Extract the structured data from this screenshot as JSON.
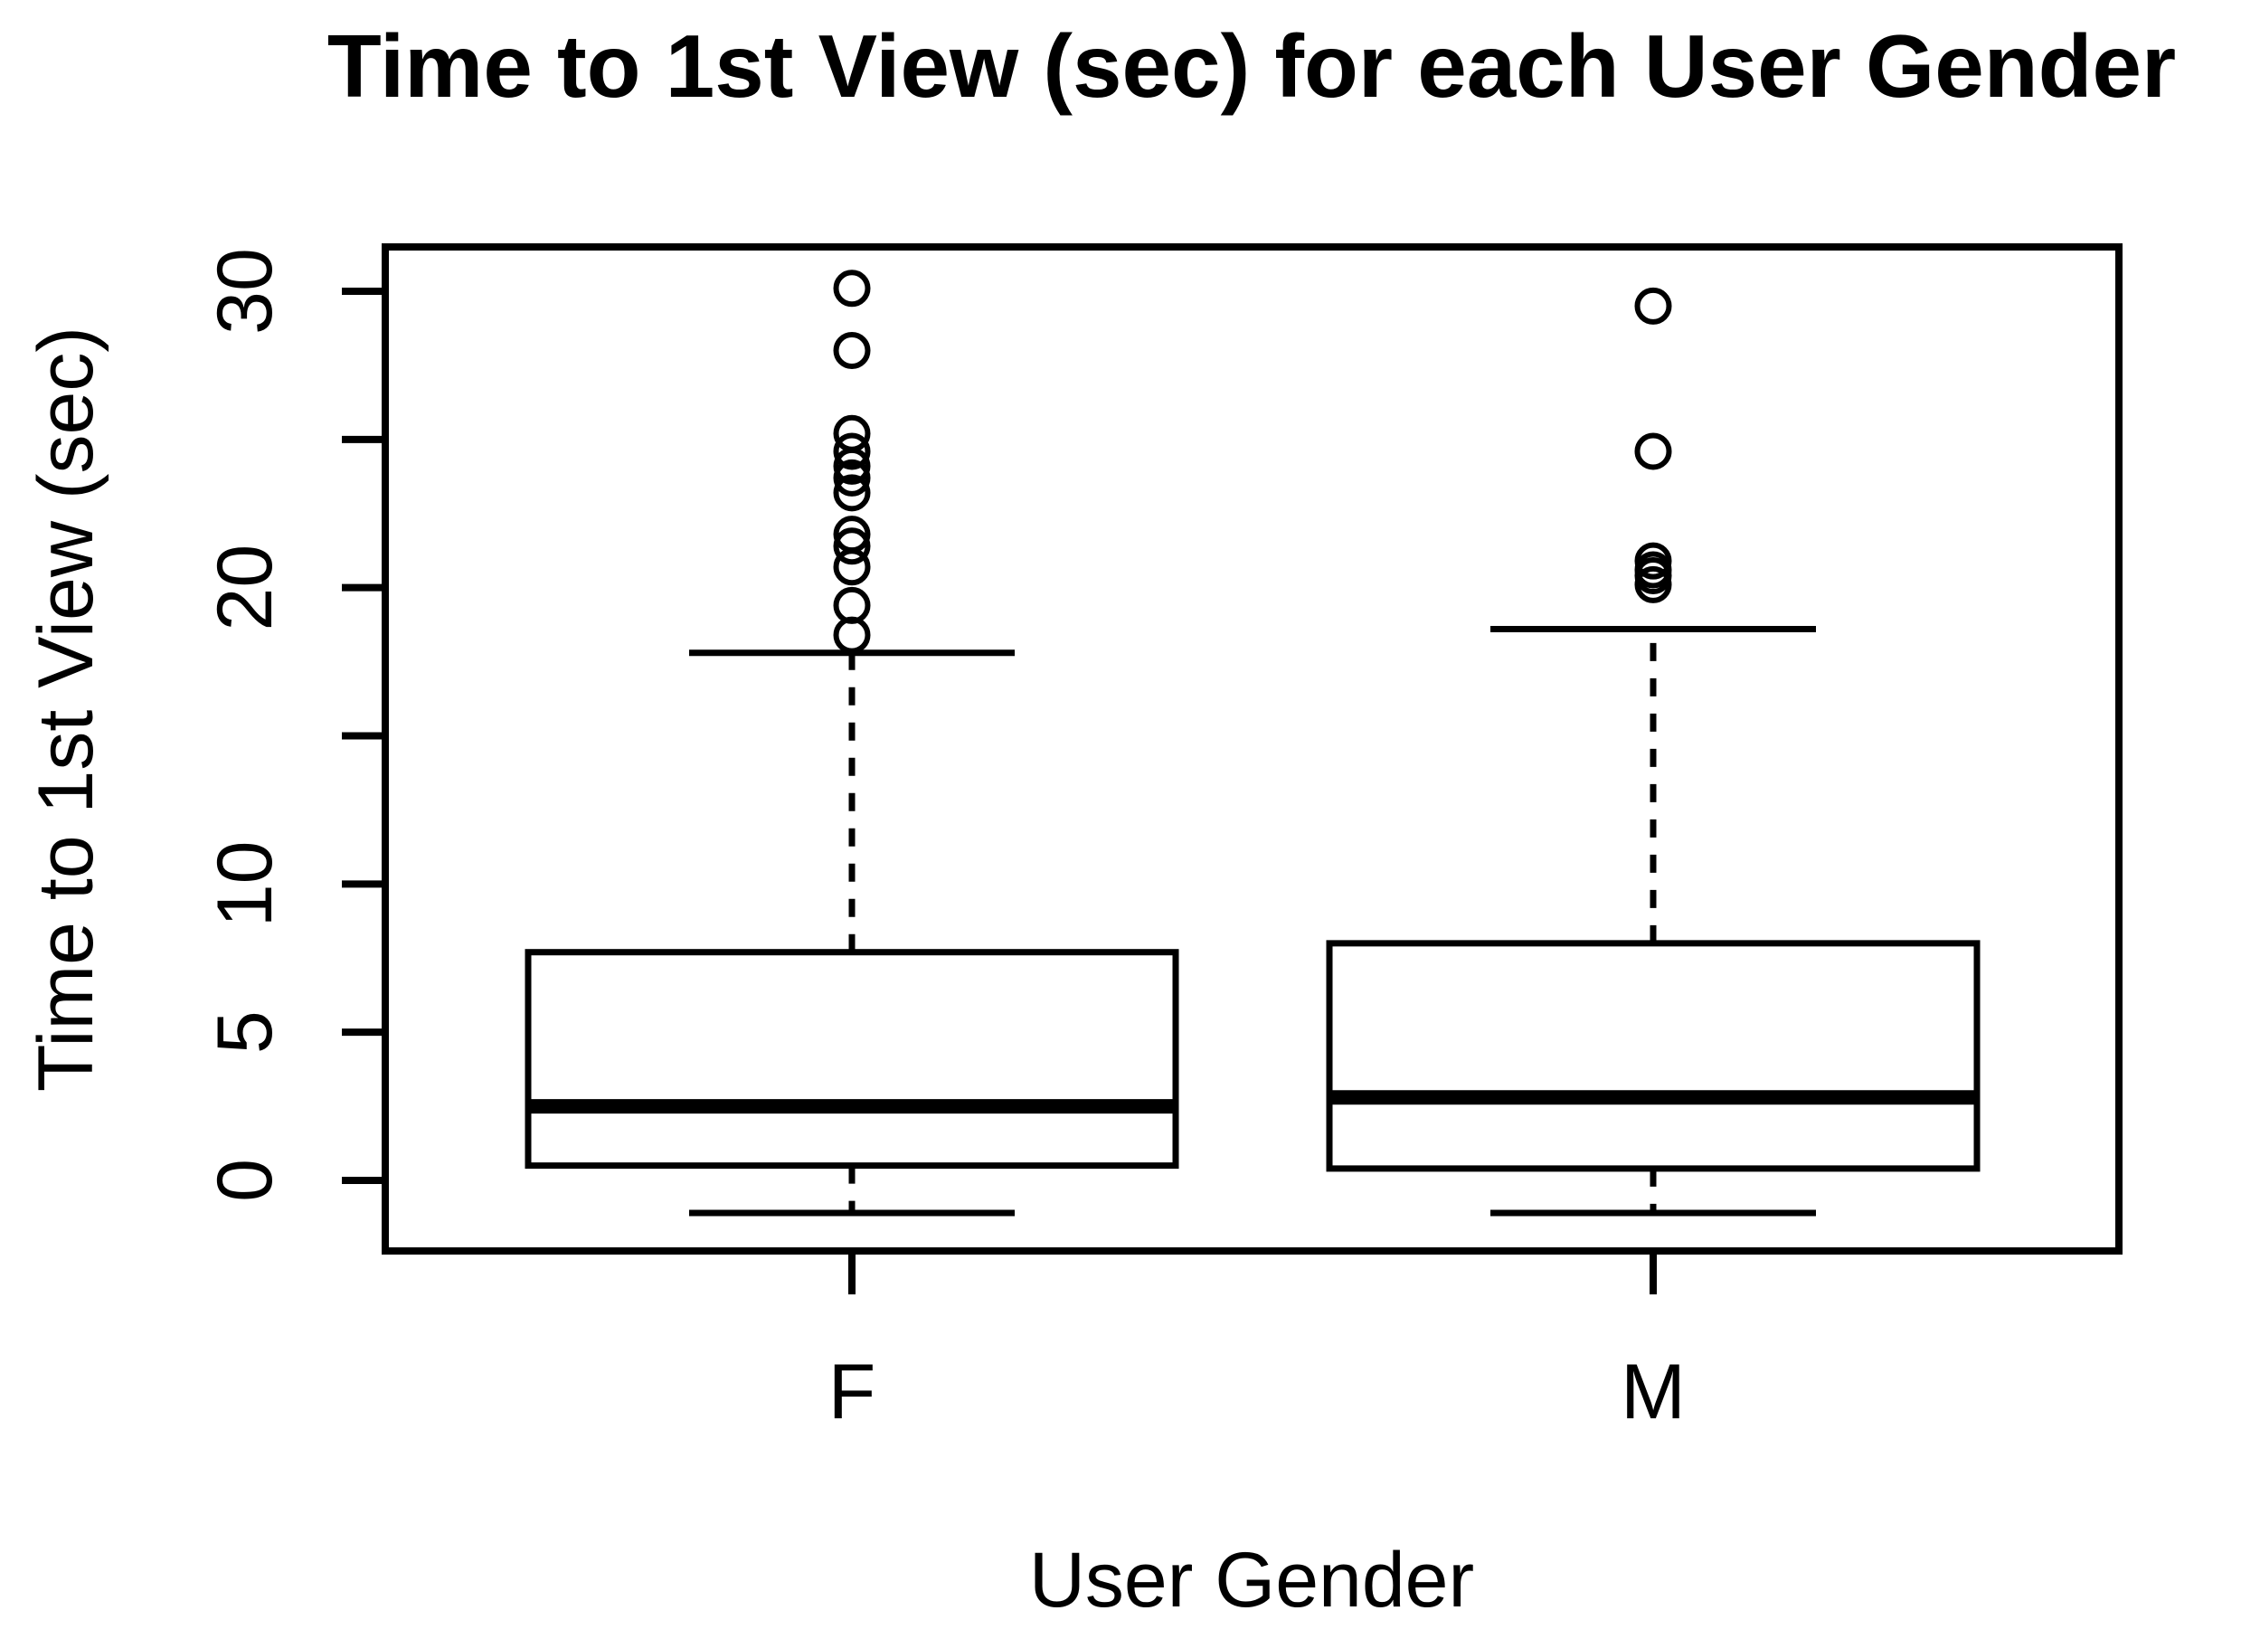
{
  "figure": {
    "background": "#ffffff",
    "foreground": "#000000"
  },
  "chart_data": {
    "type": "boxplot",
    "title": "Time to 1st View (sec) for each User Gender",
    "xlabel": "User Gender",
    "ylabel": "Time to 1st View (sec)",
    "categories": [
      "F",
      "M"
    ],
    "y_axis": {
      "ticks": [
        0,
        5,
        10,
        15,
        20,
        25,
        30
      ],
      "tick_labels": [
        "0",
        "5",
        "10",
        "",
        "20",
        "",
        "30"
      ],
      "drawn_range": [
        -2.4,
        31.5
      ],
      "grid": false
    },
    "series": [
      {
        "name": "F",
        "whisker_low": -1.1,
        "q1": 0.5,
        "median": 2.5,
        "q3": 7.7,
        "whisker_high": 17.8,
        "outliers": [
          18.4,
          19.4,
          20.7,
          21.4,
          21.8,
          23.2,
          23.7,
          24.1,
          24.6,
          25.2,
          28.0,
          30.1
        ]
      },
      {
        "name": "M",
        "whisker_low": -1.1,
        "q1": 0.4,
        "median": 2.8,
        "q3": 8.0,
        "whisker_high": 18.6,
        "outliers": [
          20.1,
          20.4,
          20.6,
          20.9,
          24.6,
          29.5
        ]
      }
    ],
    "style": {
      "box_fill": "#ffffff",
      "line_color": "#000000",
      "whisker_linestyle": "dashed",
      "outlier_marker": "circle",
      "legend": "none"
    }
  }
}
